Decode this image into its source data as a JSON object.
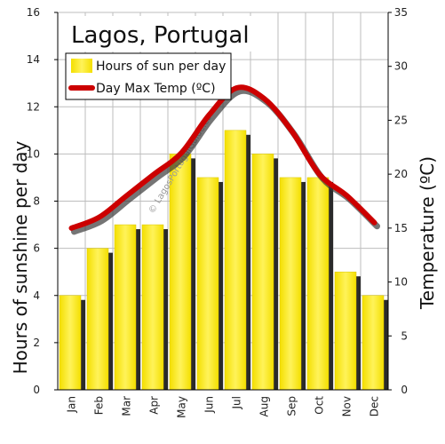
{
  "chart_data": {
    "type": "bar",
    "title": "Lagos, Portugal",
    "categories": [
      "Jan",
      "Feb",
      "Mar",
      "Apr",
      "May",
      "Jun",
      "Jul",
      "Aug",
      "Sep",
      "Oct",
      "Nov",
      "Dec"
    ],
    "series": [
      {
        "name": "Hours of sun per day",
        "type": "bar",
        "axis": "left",
        "color": "#ffee00",
        "values": [
          4,
          6,
          7,
          7,
          10,
          9,
          11,
          10,
          9,
          9,
          5,
          4
        ]
      },
      {
        "name": "Day Max Temp (ºC)",
        "type": "line",
        "axis": "right",
        "color": "#cc0000",
        "values": [
          15,
          16,
          18,
          20,
          22,
          25.5,
          28,
          27,
          24,
          20,
          18,
          15.5
        ]
      }
    ],
    "ylabel": "Hours of sunshine per day",
    "ylim": [
      0,
      16
    ],
    "yticks": [
      "0",
      "2",
      "4",
      "6",
      "8",
      "10",
      "12",
      "14",
      "16"
    ],
    "y2label": "Temperature (ºC)",
    "y2lim": [
      0,
      35
    ],
    "y2ticks": [
      "0",
      "5",
      "10",
      "15",
      "20",
      "25",
      "30",
      "35"
    ],
    "grid": true,
    "legend": "top-left",
    "watermark": "© LagosPortugalGuide.com"
  }
}
